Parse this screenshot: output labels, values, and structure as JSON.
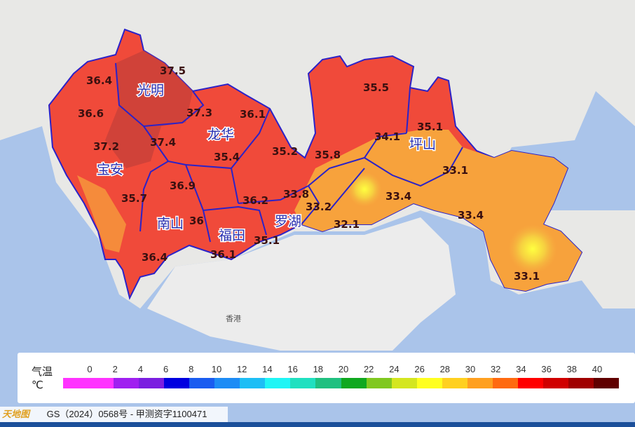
{
  "map": {
    "districts": [
      "光明",
      "龙华",
      "宝安",
      "南山",
      "福田",
      "罗湖",
      "坪山"
    ],
    "places": [
      "香港"
    ],
    "stations": [
      "37.5",
      "36.4",
      "36.6",
      "37.2",
      "37.4",
      "37.3",
      "36.1",
      "35.2",
      "35.4",
      "35.7",
      "36.9",
      "36",
      "36.4",
      "36.2",
      "33.8",
      "36.1",
      "35.1",
      "33.2",
      "32.1",
      "35.8",
      "35.5",
      "34.1",
      "35.1",
      "33.1",
      "33.4",
      "33.4",
      "33.1"
    ],
    "colors": {
      "hot": "#f04a3a",
      "hotter": "#c8403a",
      "warm": "#f7a23c",
      "mild": "#f4c34a",
      "sea": "#aac4ea",
      "land": "#e8e8e6",
      "border": "#2b22c8"
    }
  },
  "legend": {
    "title": "气温",
    "unit": "℃",
    "ticks": [
      "0",
      "2",
      "4",
      "6",
      "8",
      "10",
      "12",
      "14",
      "16",
      "18",
      "20",
      "22",
      "24",
      "26",
      "28",
      "30",
      "32",
      "34",
      "36",
      "38",
      "40"
    ],
    "colors": [
      "#ff33ff",
      "#ff33ff",
      "#a020f0",
      "#7b1fe0",
      "#0000e0",
      "#1a5cf0",
      "#1e8cf5",
      "#1ebef5",
      "#20f5f5",
      "#20e0c0",
      "#20c080",
      "#10a820",
      "#80c820",
      "#d4e620",
      "#ffff20",
      "#ffd020",
      "#ffa020",
      "#ff6a10",
      "#ff0000",
      "#d00000",
      "#a00000",
      "#600000"
    ]
  },
  "footer": {
    "logo": "天地图",
    "text": "GS（2024）0568号 - 甲测资字1100471"
  }
}
